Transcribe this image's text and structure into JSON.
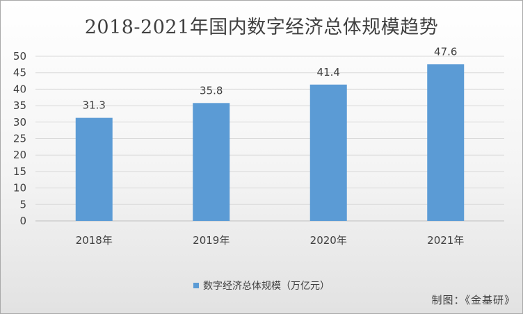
{
  "chart_data": {
    "type": "bar",
    "title": "2018-2021年国内数字经济总体规模趋势",
    "categories": [
      "2018年",
      "2019年",
      "2020年",
      "2021年"
    ],
    "series": [
      {
        "name": "数字经济总体规模（万亿元）",
        "values": [
          31.3,
          35.8,
          41.4,
          47.6
        ]
      }
    ],
    "data_labels": [
      "31.3",
      "35.8",
      "41.4",
      "47.6"
    ],
    "ylim": [
      0,
      50
    ],
    "yticks": [
      0,
      5,
      10,
      15,
      20,
      25,
      30,
      35,
      40,
      45,
      50
    ],
    "grid": true,
    "legend": "bottom",
    "colors": {
      "bar": "#5b9bd5",
      "grid": "#d9d9d9",
      "text": "#404040"
    }
  },
  "source_credit": "制图：《金基研》"
}
